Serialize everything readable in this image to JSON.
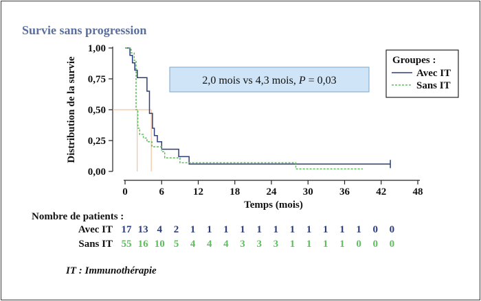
{
  "title": "Survie sans progression",
  "annotation_box": {
    "prefix": "2,0 mois vs 4,3 mois, ",
    "p_label": "P",
    "suffix": " = 0,03"
  },
  "footnote": "IT : Immunothérapie",
  "colors": {
    "title": "#5a6fa0",
    "avec_it": "#2b3c7a",
    "sans_it": "#5cbf5c",
    "median_lines": "#f2b58a",
    "annotation_fill": "#cfe4f6",
    "annotation_stroke": "#7aa6cf"
  },
  "chart_data": {
    "type": "line",
    "subtype": "kaplan-meier-step",
    "xlabel": "Temps (mois)",
    "ylabel": "Distribution de la survie",
    "xlim": [
      0,
      48
    ],
    "ylim": [
      0,
      1
    ],
    "xticks": [
      "0",
      "6",
      "12",
      "18",
      "24",
      "30",
      "36",
      "42",
      "48"
    ],
    "yticks": [
      "0,00",
      "0,25",
      "0,50",
      "0,75",
      "1,00"
    ],
    "legend": {
      "title": "Groupes :",
      "position": "top-right"
    },
    "medians": [
      2.0,
      4.3
    ],
    "series": [
      {
        "name": "Avec IT",
        "style": "solid",
        "censor_end": true,
        "points": [
          [
            0,
            1.0
          ],
          [
            0.8,
            1.0
          ],
          [
            0.8,
            0.94
          ],
          [
            1.2,
            0.94
          ],
          [
            1.2,
            0.88
          ],
          [
            1.6,
            0.88
          ],
          [
            1.6,
            0.82
          ],
          [
            2.0,
            0.82
          ],
          [
            2.0,
            0.76
          ],
          [
            3.6,
            0.76
          ],
          [
            3.6,
            0.65
          ],
          [
            4.0,
            0.65
          ],
          [
            4.0,
            0.47
          ],
          [
            4.5,
            0.47
          ],
          [
            4.5,
            0.35
          ],
          [
            4.8,
            0.35
          ],
          [
            4.8,
            0.29
          ],
          [
            5.3,
            0.29
          ],
          [
            5.3,
            0.24
          ],
          [
            6.0,
            0.24
          ],
          [
            6.0,
            0.18
          ],
          [
            8.8,
            0.18
          ],
          [
            8.8,
            0.12
          ],
          [
            10.5,
            0.12
          ],
          [
            10.5,
            0.06
          ],
          [
            43.5,
            0.06
          ]
        ]
      },
      {
        "name": "Sans IT",
        "style": "dashed",
        "censor_end": false,
        "points": [
          [
            0,
            1.0
          ],
          [
            1.0,
            1.0
          ],
          [
            1.0,
            0.96
          ],
          [
            1.5,
            0.96
          ],
          [
            1.5,
            0.9
          ],
          [
            1.8,
            0.9
          ],
          [
            1.8,
            0.5
          ],
          [
            2.1,
            0.5
          ],
          [
            2.1,
            0.35
          ],
          [
            2.4,
            0.35
          ],
          [
            2.4,
            0.3
          ],
          [
            3.0,
            0.3
          ],
          [
            3.0,
            0.27
          ],
          [
            3.6,
            0.27
          ],
          [
            3.6,
            0.24
          ],
          [
            4.4,
            0.24
          ],
          [
            4.4,
            0.2
          ],
          [
            6.0,
            0.2
          ],
          [
            6.0,
            0.16
          ],
          [
            6.5,
            0.16
          ],
          [
            6.5,
            0.11
          ],
          [
            9.0,
            0.11
          ],
          [
            9.0,
            0.07
          ],
          [
            28.0,
            0.07
          ],
          [
            28.0,
            0.02
          ],
          [
            39.0,
            0.02
          ]
        ]
      }
    ]
  },
  "risk_table": {
    "title": "Nombre de patients :",
    "rows": [
      {
        "label": "Avec IT",
        "values": [
          "17",
          "13",
          "4",
          "2",
          "1",
          "1",
          "1",
          "1",
          "1",
          "1",
          "1",
          "1",
          "1",
          "1",
          "1",
          "0",
          "0"
        ]
      },
      {
        "label": "Sans IT",
        "values": [
          "55",
          "16",
          "10",
          "5",
          "4",
          "4",
          "4",
          "3",
          "3",
          "3",
          "1",
          "1",
          "1",
          "1",
          "0",
          "0",
          "0"
        ]
      }
    ]
  }
}
